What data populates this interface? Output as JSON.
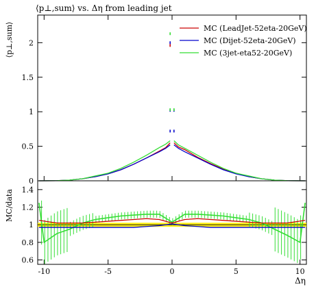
{
  "chart_data": [
    {
      "type": "line",
      "title": "⟨p⊥,sum⟩ vs. Δη from leading jet",
      "xlabel": "",
      "ylabel": "⟨p⊥,sum⟩",
      "xlim": [
        -10.5,
        10.5
      ],
      "ylim": [
        0,
        2.4
      ],
      "x_ticks": [
        -10,
        -5,
        0,
        5,
        10
      ],
      "y_ticks": [
        0,
        0.5,
        1,
        1.5,
        2
      ],
      "y_tick_labels": [
        "0",
        "0.5",
        "1",
        "1.5",
        "2"
      ],
      "legend_position": "top-right",
      "series": [
        {
          "name": "MC (LeadJet-52eta-20GeV)",
          "color": "#cc0000",
          "x": [
            -10.4,
            -9,
            -8,
            -7,
            -6,
            -5,
            -4,
            -3,
            -2,
            -1,
            -0.5,
            -0.15,
            0.15,
            0.5,
            1,
            2,
            3,
            4,
            5,
            6,
            7,
            8,
            9,
            10.4
          ],
          "y": [
            0.0,
            0.002,
            0.01,
            0.03,
            0.06,
            0.1,
            0.16,
            0.24,
            0.33,
            0.43,
            0.48,
            0.55,
            0.55,
            0.49,
            0.45,
            0.34,
            0.25,
            0.17,
            0.11,
            0.06,
            0.03,
            0.01,
            0.002,
            0.0
          ]
        },
        {
          "name": "MC (Dijet-52eta-20GeV)",
          "color": "#0000cc",
          "x": [
            -10.4,
            -9,
            -8,
            -7,
            -6,
            -5,
            -4,
            -3,
            -2,
            -1,
            -0.5,
            -0.15,
            0.15,
            0.5,
            1,
            2,
            3,
            4,
            5,
            6,
            7,
            8,
            9,
            10.4
          ],
          "y": [
            0.0,
            0.002,
            0.01,
            0.03,
            0.06,
            0.1,
            0.16,
            0.24,
            0.33,
            0.42,
            0.47,
            0.52,
            0.52,
            0.47,
            0.42,
            0.33,
            0.24,
            0.16,
            0.1,
            0.06,
            0.03,
            0.01,
            0.002,
            0.0
          ]
        },
        {
          "name": "MC (3jet-eta52-20GeV)",
          "color": "#33dd33",
          "x": [
            -10.4,
            -9,
            -8,
            -7,
            -6,
            -5,
            -4,
            -3,
            -2,
            -1,
            -0.5,
            -0.15,
            0.15,
            0.5,
            1,
            2,
            3,
            4,
            5,
            6,
            7,
            8,
            9,
            10.4
          ],
          "y": [
            0.0,
            0.002,
            0.01,
            0.03,
            0.07,
            0.11,
            0.18,
            0.27,
            0.37,
            0.48,
            0.53,
            0.58,
            0.58,
            0.52,
            0.47,
            0.37,
            0.27,
            0.18,
            0.11,
            0.07,
            0.03,
            0.01,
            0.002,
            0.0
          ]
        }
      ],
      "central_points": [
        {
          "x": -0.15,
          "y": 2.0,
          "color": "#0000cc"
        },
        {
          "x": -0.15,
          "y": 1.96,
          "color": "#cc0000"
        },
        {
          "x": -0.15,
          "y": 2.13,
          "color": "#33dd33"
        },
        {
          "x": -0.15,
          "y": 1.02,
          "color": "#0000cc"
        },
        {
          "x": 0.15,
          "y": 1.02,
          "color": "#0000cc"
        },
        {
          "x": -0.15,
          "y": 1.03,
          "color": "#33dd33"
        },
        {
          "x": 0.15,
          "y": 1.03,
          "color": "#33dd33"
        },
        {
          "x": -0.15,
          "y": 0.72,
          "color": "#0000cc"
        },
        {
          "x": 0.15,
          "y": 0.72,
          "color": "#0000cc"
        }
      ]
    },
    {
      "type": "line",
      "title": "",
      "xlabel": "Δη",
      "ylabel": "MC/data",
      "xlim": [
        -10.5,
        10.5
      ],
      "ylim": [
        0.55,
        1.5
      ],
      "x_ticks": [
        -10,
        -5,
        0,
        5,
        10
      ],
      "x_tick_labels": [
        "-10",
        "-5",
        "0",
        "5",
        "10"
      ],
      "y_ticks": [
        0.6,
        0.8,
        1,
        1.2,
        1.4
      ],
      "y_tick_labels": [
        "0.6",
        "0.8",
        "1",
        "1.2",
        "1.4"
      ],
      "reference_line": 1,
      "band_color": "#ffee00",
      "series": [
        {
          "name": "MC (LeadJet-52eta-20GeV)",
          "color": "#cc0000",
          "x": [
            -10.4,
            -9,
            -8,
            -7,
            -6,
            -5,
            -4,
            -3,
            -2,
            -1,
            0,
            1,
            2,
            3,
            4,
            5,
            6,
            7,
            8,
            9,
            10.4
          ],
          "y": [
            1.05,
            1.02,
            1.02,
            1.02,
            1.03,
            1.04,
            1.05,
            1.06,
            1.07,
            1.06,
            1.02,
            1.06,
            1.07,
            1.06,
            1.05,
            1.04,
            1.03,
            1.02,
            1.02,
            1.02,
            1.05
          ]
        },
        {
          "name": "MC (Dijet-52eta-20GeV)",
          "color": "#0000cc",
          "x": [
            -10.4,
            -9,
            -8,
            -7,
            -6,
            -5,
            -4,
            -3,
            -2,
            -1,
            0,
            1,
            2,
            3,
            4,
            5,
            6,
            7,
            8,
            9,
            10.4
          ],
          "y": [
            0.97,
            0.97,
            0.97,
            0.97,
            0.97,
            0.97,
            0.97,
            0.97,
            0.98,
            0.99,
            1.01,
            0.99,
            0.98,
            0.97,
            0.97,
            0.97,
            0.97,
            0.97,
            0.97,
            0.97,
            0.97
          ]
        },
        {
          "name": "MC (3jet-eta52-20GeV)",
          "color": "#33dd33",
          "x": [
            -10.4,
            -10,
            -9,
            -8,
            -7,
            -6,
            -5,
            -4,
            -3,
            -2,
            -1,
            0,
            1,
            2,
            3,
            4,
            5,
            6,
            7,
            8,
            9,
            10,
            10.4
          ],
          "y": [
            1.25,
            0.8,
            0.9,
            0.95,
            1.02,
            1.06,
            1.08,
            1.1,
            1.11,
            1.12,
            1.12,
            1.03,
            1.12,
            1.12,
            1.11,
            1.1,
            1.08,
            1.06,
            1.02,
            0.95,
            0.88,
            0.8,
            1.25
          ]
        }
      ]
    }
  ]
}
